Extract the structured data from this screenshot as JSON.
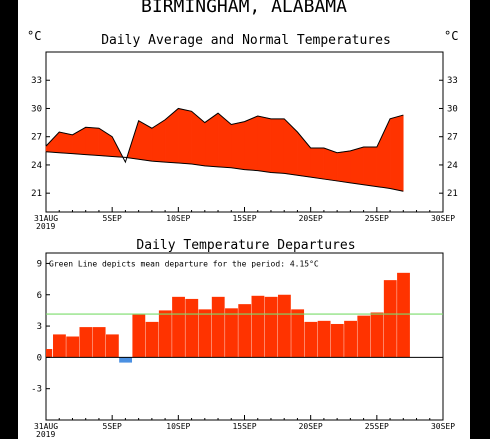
{
  "location_title": "BIRMINGHAM, ALABAMA",
  "unit_left": "°C",
  "unit_right": "°C",
  "year_label": "2019",
  "chart_data": [
    {
      "type": "area",
      "title": "Daily Average and Normal Temperatures",
      "ylim": [
        19,
        36
      ],
      "yticks": [
        21,
        24,
        27,
        30,
        33
      ],
      "xlim": [
        0,
        30
      ],
      "xticks": [
        0,
        5,
        10,
        15,
        20,
        25,
        30
      ],
      "xtick_labels": [
        "31AUG",
        "5SEP",
        "10SEP",
        "15SEP",
        "20SEP",
        "25SEP",
        "30SEP"
      ],
      "series": [
        {
          "values": [
            26.0,
            27.5,
            27.2,
            28.0,
            27.9,
            27.0,
            24.3,
            28.7,
            27.9,
            28.8,
            30.0,
            29.7,
            28.5,
            29.5,
            28.3,
            28.6,
            29.2,
            28.9,
            28.9,
            27.5,
            25.8,
            25.8,
            25.3,
            25.5,
            25.9,
            25.9,
            28.9,
            29.3
          ]
        },
        {
          "values": [
            25.4,
            25.3,
            25.2,
            25.1,
            25.0,
            24.9,
            24.8,
            24.6,
            24.4,
            24.3,
            24.2,
            24.1,
            23.9,
            23.8,
            23.7,
            23.5,
            23.4,
            23.2,
            23.1,
            22.9,
            22.7,
            22.5,
            22.3,
            22.1,
            21.9,
            21.7,
            21.5,
            21.2
          ]
        }
      ]
    },
    {
      "type": "bar",
      "title": "Daily Temperature Departures",
      "annotation": "Green Line depicts mean departure for the period: 4.15°C",
      "mean_departure": 4.15,
      "ylim": [
        -6,
        10
      ],
      "yticks": [
        -3,
        0,
        3,
        6,
        9
      ],
      "xlim": [
        0,
        30
      ],
      "xticks": [
        0,
        5,
        10,
        15,
        20,
        25,
        30
      ],
      "xtick_labels": [
        "31AUG",
        "5SEP",
        "10SEP",
        "15SEP",
        "20SEP",
        "25SEP",
        "30SEP"
      ],
      "values": [
        0.8,
        2.2,
        2.0,
        2.9,
        2.9,
        2.2,
        -0.5,
        4.1,
        3.4,
        4.5,
        5.8,
        5.6,
        4.6,
        5.8,
        4.7,
        5.1,
        5.9,
        5.8,
        6.0,
        4.6,
        3.4,
        3.5,
        3.2,
        3.5,
        4.0,
        4.3,
        7.4,
        8.1
      ]
    }
  ]
}
